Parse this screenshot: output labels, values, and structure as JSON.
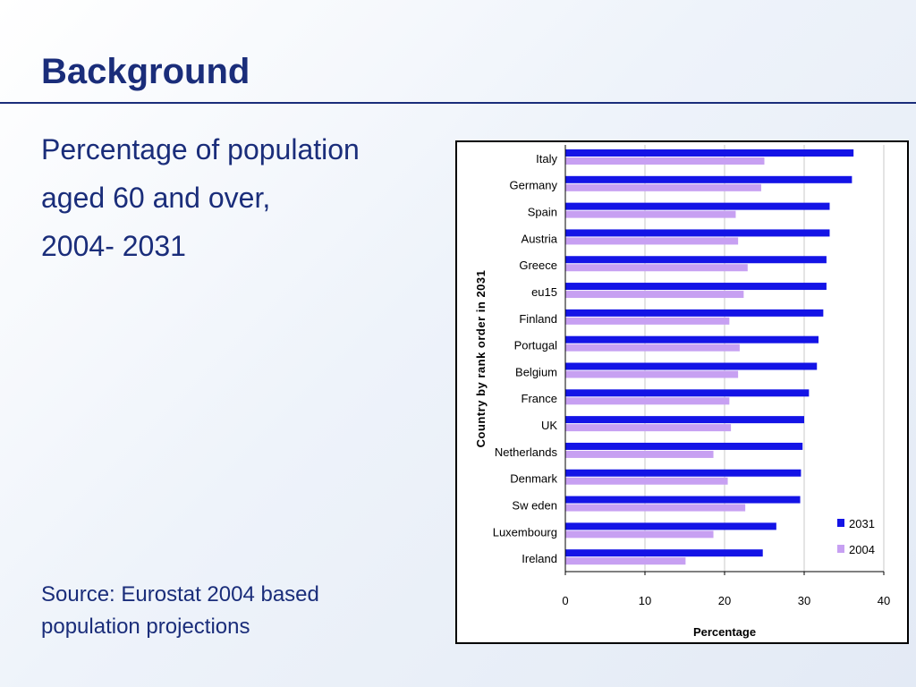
{
  "slide": {
    "title": "Background",
    "subtitle_lines": [
      "Percentage of population",
      "aged 60 and over,",
      "2004- 2031"
    ],
    "source_lines": [
      "Source: Eurostat 2004 based",
      "population projections"
    ]
  },
  "colors": {
    "title": "#1a2d7a",
    "series_2031": "#1414e6",
    "series_2004": "#c7a0f2"
  },
  "chart_data": {
    "type": "bar",
    "orientation": "horizontal",
    "categories": [
      "Italy",
      "Germany",
      "Spain",
      "Austria",
      "Greece",
      "eu15",
      "Finland",
      "Portugal",
      "Belgium",
      "France",
      "UK",
      "Netherlands",
      "Denmark",
      "Sw eden",
      "Luxembourg",
      "Ireland"
    ],
    "series": [
      {
        "name": "2031",
        "values": [
          36.2,
          36.0,
          33.2,
          33.2,
          32.8,
          32.8,
          32.4,
          31.8,
          31.6,
          30.6,
          30.0,
          29.8,
          29.6,
          29.5,
          26.5,
          24.8
        ]
      },
      {
        "name": "2004",
        "values": [
          25.0,
          24.6,
          21.4,
          21.7,
          22.9,
          22.4,
          20.6,
          21.9,
          21.7,
          20.6,
          20.8,
          18.6,
          20.4,
          22.6,
          18.6,
          15.1
        ]
      }
    ],
    "xlabel": "Percentage",
    "ylabel": "Country by rank order in 2031",
    "xlim": [
      0,
      40
    ],
    "xticks": [
      "0",
      "10",
      "20",
      "30",
      "40"
    ],
    "grid": "vertical",
    "legend_position": "bottom-right"
  }
}
